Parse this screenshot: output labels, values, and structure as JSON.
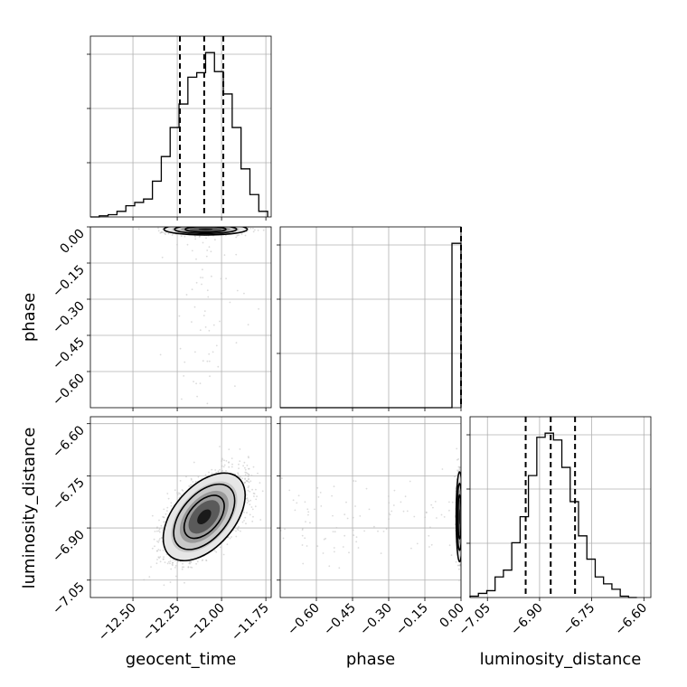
{
  "chart_data": {
    "type": "corner",
    "parameters": [
      "geocent_time",
      "phase",
      "luminosity_distance"
    ],
    "axes": {
      "geocent_time": {
        "label": "geocent_time",
        "range": [
          -12.74,
          -11.72
        ],
        "ticks": [
          -12.5,
          -12.25,
          -12.0,
          -11.75
        ],
        "tick_labels": [
          "−12.50",
          "−12.25",
          "−12.00",
          "−11.75"
        ]
      },
      "phase": {
        "label": "phase",
        "range": [
          -0.75,
          0.0
        ],
        "ticks": [
          -0.6,
          -0.45,
          -0.3,
          -0.15,
          0.0
        ],
        "tick_labels": [
          "−0.60",
          "−0.45",
          "−0.30",
          "−0.15",
          "0.00"
        ]
      },
      "luminosity_distance": {
        "label": "luminosity_distance",
        "range": [
          -7.1,
          -6.58
        ],
        "ticks": [
          -7.05,
          -6.9,
          -6.75,
          -6.6
        ],
        "tick_labels": [
          "−7.05",
          "−6.90",
          "−6.75",
          "−6.60"
        ]
      }
    },
    "histograms": [
      {
        "parameter": "geocent_time",
        "quantiles": [
          -12.235,
          -12.098,
          -11.99
        ],
        "bin_edges": [
          -12.74,
          -12.69,
          -12.64,
          -12.59,
          -12.54,
          -12.49,
          -12.44,
          -12.39,
          -12.34,
          -12.29,
          -12.24,
          -12.19,
          -12.14,
          -12.09,
          -12.04,
          -11.99,
          -11.94,
          -11.89,
          -11.84,
          -11.79,
          -11.74
        ],
        "counts": [
          0,
          1,
          2,
          5,
          10,
          13,
          16,
          32,
          54,
          80,
          101,
          125,
          129,
          147,
          130,
          110,
          80,
          43,
          20,
          5
        ]
      },
      {
        "parameter": "phase",
        "quantiles": [
          0.0
        ],
        "bin_edges": [
          -0.75,
          -0.0375,
          0.0
        ],
        "counts": [
          0,
          100
        ]
      },
      {
        "parameter": "luminosity_distance",
        "quantiles": [
          -6.94,
          -6.868,
          -6.798
        ],
        "bin_edges": [
          -7.1,
          -7.076,
          -7.052,
          -7.028,
          -7.004,
          -6.98,
          -6.956,
          -6.932,
          -6.908,
          -6.884,
          -6.86,
          -6.836,
          -6.812,
          -6.788,
          -6.764,
          -6.74,
          -6.716,
          -6.692,
          -6.668,
          -6.644,
          -6.62
        ],
        "counts": [
          1,
          3,
          5,
          15,
          20,
          40,
          59,
          89,
          117,
          120,
          115,
          95,
          70,
          45,
          28,
          15,
          10,
          6,
          1,
          0
        ]
      }
    ],
    "joint": [
      {
        "x": "geocent_time",
        "y": "phase",
        "center": [
          -12.09,
          -0.01
        ],
        "spread": [
          0.1,
          0.01
        ]
      },
      {
        "x": "geocent_time",
        "y": "luminosity_distance",
        "center": [
          -12.098,
          -6.868
        ],
        "spread": [
          0.1,
          0.055
        ],
        "correlation": 0.55
      },
      {
        "x": "phase",
        "y": "luminosity_distance",
        "center": [
          -0.006,
          -6.868
        ],
        "spread": [
          0.006,
          0.055
        ]
      }
    ],
    "grid": true
  }
}
